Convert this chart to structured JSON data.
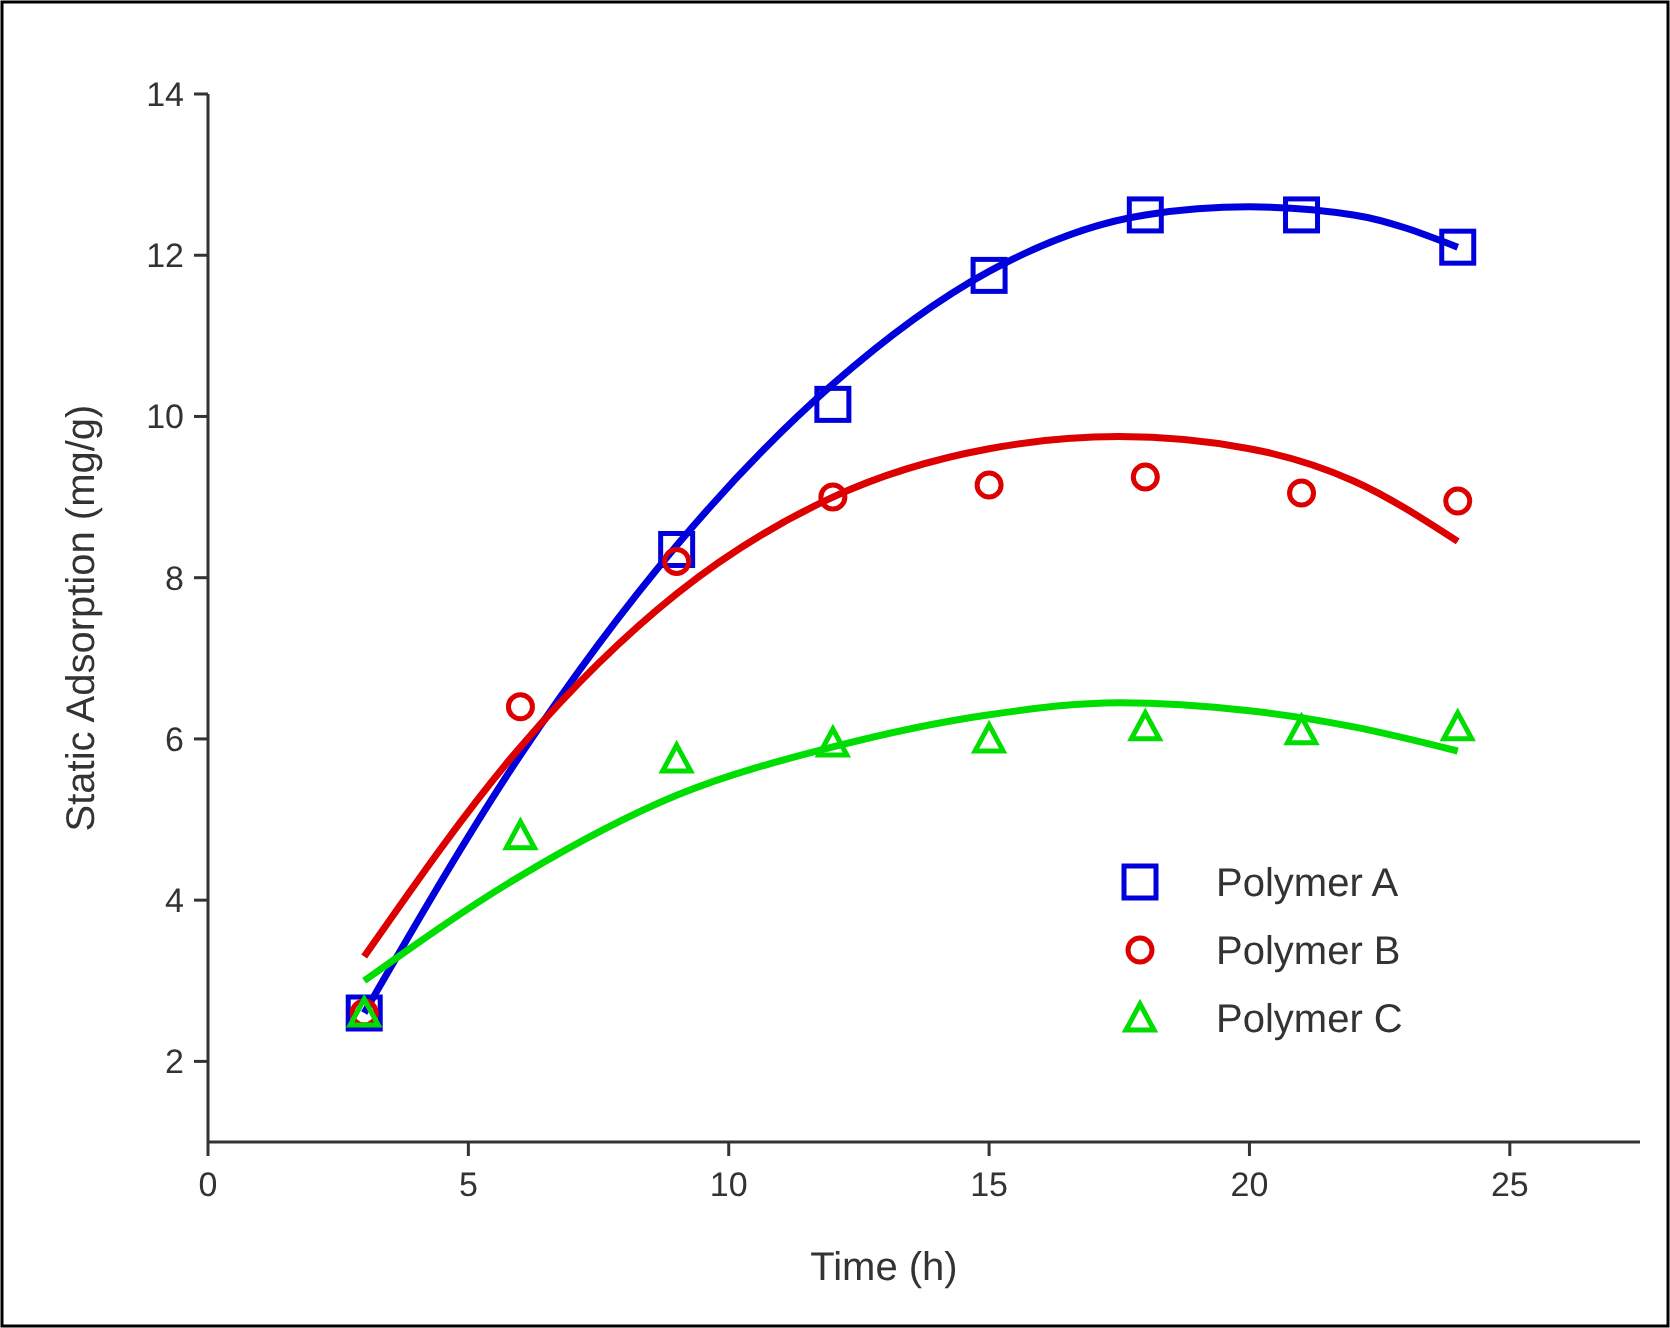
{
  "chart_data": {
    "type": "scatter",
    "xlabel": "Time (h)",
    "ylabel": "Static Adsorption (mg/g)",
    "xlim": [
      0,
      27.5
    ],
    "ylim": [
      1,
      14
    ],
    "xticks": [
      0,
      5,
      10,
      15,
      20,
      25
    ],
    "yticks": [
      2,
      4,
      6,
      8,
      10,
      12,
      14
    ],
    "grid": false,
    "legend": "bottom right",
    "series": [
      {
        "name": "Polymer A",
        "marker": "square",
        "color": "#0000dd",
        "x": [
          3,
          9,
          12,
          15,
          18,
          21,
          24
        ],
        "values": [
          2.6,
          8.35,
          10.15,
          11.75,
          12.5,
          12.5,
          12.1
        ]
      },
      {
        "name": "Polymer B",
        "marker": "circle",
        "color": "#dd0000",
        "x": [
          3,
          6,
          9,
          12,
          15,
          18,
          21,
          24
        ],
        "values": [
          2.6,
          6.4,
          8.2,
          9.0,
          9.15,
          9.25,
          9.05,
          8.95
        ]
      },
      {
        "name": "Polymer C",
        "marker": "triangle",
        "color": "#00dd00",
        "x": [
          3,
          6,
          9,
          12,
          15,
          18,
          21,
          24
        ],
        "values": [
          2.6,
          4.8,
          5.75,
          5.95,
          6.0,
          6.15,
          6.1,
          6.15
        ]
      },
      {
        "type": "line",
        "marker": "none",
        "line_style": "solid",
        "color": "#0000dd",
        "x": [
          3,
          6,
          9,
          12,
          15,
          18,
          20,
          22,
          24
        ],
        "values": [
          2.6,
          5.8,
          8.4,
          10.4,
          11.8,
          12.5,
          12.6,
          12.5,
          12.1
        ]
      },
      {
        "type": "line",
        "marker": "none",
        "line_style": "solid",
        "color": "#dd0000",
        "x": [
          3,
          6,
          9,
          12,
          15,
          17.5,
          20,
          22,
          24
        ],
        "values": [
          3.3,
          5.9,
          7.8,
          9.0,
          9.6,
          9.75,
          9.6,
          9.2,
          8.45
        ]
      },
      {
        "type": "line",
        "marker": "none",
        "line_style": "solid",
        "color": "#00dd00",
        "x": [
          3,
          6,
          9,
          12,
          15,
          17.5,
          20,
          22,
          24
        ],
        "values": [
          3.0,
          4.3,
          5.3,
          5.9,
          6.3,
          6.45,
          6.35,
          6.15,
          5.85
        ]
      }
    ]
  }
}
